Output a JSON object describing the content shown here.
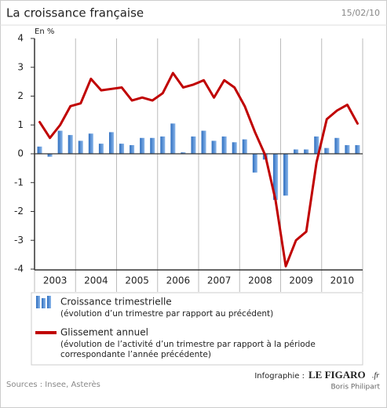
{
  "chart_data": {
    "type": "bar-line",
    "title": "La croissance française",
    "date": "15/02/10",
    "y_label": "En %",
    "years": [
      "2003",
      "2004",
      "2005",
      "2006",
      "2007",
      "2008",
      "2009",
      "2010"
    ],
    "ylim": [
      -4,
      4
    ],
    "yticks": [
      -4,
      -3,
      -2,
      -1,
      0,
      1,
      2,
      3,
      4
    ],
    "series": [
      {
        "name": "Croissance trimestrielle",
        "note": "(évolution d’un trimestre par rapport au précédent)",
        "color": "#4a86cf",
        "type": "bar",
        "values": [
          0.25,
          -0.1,
          0.8,
          0.65,
          0.45,
          0.7,
          0.35,
          0.75,
          0.35,
          0.3,
          0.55,
          0.55,
          0.6,
          1.05,
          0.05,
          0.6,
          0.8,
          0.45,
          0.6,
          0.4,
          0.5,
          -0.65,
          -0.2,
          -1.6,
          -1.45,
          0.15,
          0.15,
          0.6,
          0.2,
          0.55,
          0.3,
          0.3
        ]
      },
      {
        "name": "Glissement annuel",
        "note": [
          "(évolution de l’activité d’un trimestre par rapport à la période",
          "correspondante l’année précédente)"
        ],
        "color": "#c00000",
        "type": "line",
        "values": [
          1.1,
          0.55,
          1.0,
          1.65,
          1.75,
          2.6,
          2.2,
          2.25,
          2.3,
          1.85,
          1.95,
          1.85,
          2.1,
          2.8,
          2.3,
          2.4,
          2.55,
          1.95,
          2.55,
          2.3,
          1.65,
          0.75,
          -0.05,
          -1.6,
          -3.9,
          -3.0,
          -2.7,
          -0.3,
          1.2,
          1.5,
          1.7,
          1.05
        ]
      }
    ],
    "source": "Sources : Insee, Asterès",
    "credit": "Infographie :",
    "brand": "LE FIGARO",
    "brand_suffix": ".fr",
    "author": "Boris Philipart"
  }
}
